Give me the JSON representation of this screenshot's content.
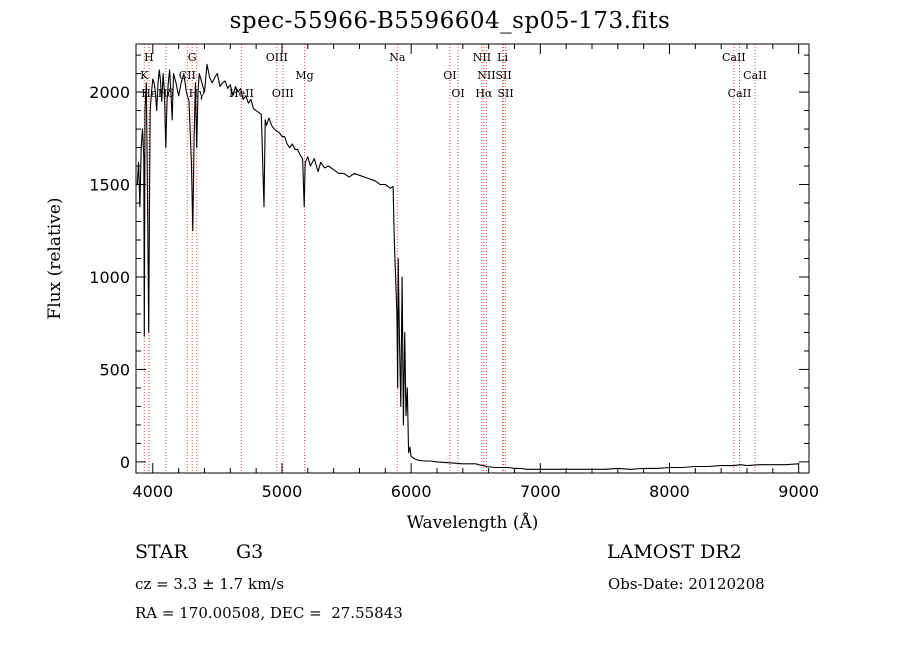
{
  "chart_data": {
    "type": "line",
    "title": "spec-55966-B5596604_sp05-173.fits",
    "xlabel": "Wavelength (Å)",
    "ylabel": "Flux (relative)",
    "xlim": [
      3870,
      9080
    ],
    "ylim": [
      -60,
      2260
    ],
    "xticks": [
      4000,
      5000,
      6000,
      7000,
      8000,
      9000
    ],
    "yticks": [
      0,
      500,
      1000,
      1500,
      2000
    ],
    "grid": false,
    "series": [
      {
        "x": [
          3880,
          3890,
          3900,
          3910,
          3920,
          3930,
          3934,
          3940,
          3950,
          3960,
          3968,
          3975,
          3980,
          3990,
          4000,
          4010,
          4020,
          4030,
          4040,
          4050,
          4060,
          4070,
          4080,
          4090,
          4101,
          4110,
          4120,
          4130,
          4140,
          4150,
          4160,
          4180,
          4200,
          4220,
          4240,
          4260,
          4280,
          4300,
          4310,
          4320,
          4330,
          4340,
          4350,
          4360,
          4380,
          4400,
          4420,
          4440,
          4460,
          4480,
          4500,
          4520,
          4540,
          4560,
          4580,
          4600,
          4620,
          4640,
          4660,
          4680,
          4700,
          4720,
          4740,
          4760,
          4780,
          4800,
          4820,
          4840,
          4861,
          4870,
          4880,
          4900,
          4920,
          4940,
          4960,
          4980,
          5000,
          5020,
          5040,
          5060,
          5080,
          5100,
          5120,
          5140,
          5160,
          5172,
          5180,
          5200,
          5220,
          5250,
          5280,
          5300,
          5330,
          5360,
          5400,
          5440,
          5480,
          5520,
          5560,
          5600,
          5640,
          5680,
          5720,
          5760,
          5800,
          5840,
          5860,
          5870,
          5880,
          5890,
          5896,
          5900,
          5910,
          5920,
          5930,
          5940,
          5950,
          5960,
          5970,
          5980,
          5990,
          6000,
          6020,
          6050,
          6100,
          6150,
          6200,
          6300,
          6400,
          6500,
          6550,
          6563,
          6580,
          6650,
          6700,
          6750,
          6800,
          6850,
          6900,
          7000,
          7100,
          7200,
          7300,
          7400,
          7500,
          7600,
          7700,
          7800,
          7900,
          8000,
          8100,
          8200,
          8300,
          8400,
          8500,
          8550,
          8600,
          8700,
          8800,
          8900,
          9000
        ],
        "y": [
          1500,
          1620,
          1380,
          1700,
          1800,
          1650,
          680,
          1900,
          2050,
          1400,
          700,
          1500,
          1900,
          2000,
          2070,
          2050,
          2000,
          1900,
          2050,
          2120,
          2060,
          1950,
          2100,
          2000,
          1700,
          1950,
          2050,
          2120,
          2000,
          1850,
          2100,
          2050,
          1980,
          2050,
          2100,
          2000,
          1950,
          1600,
          1250,
          1750,
          2050,
          1700,
          2000,
          2100,
          2050,
          2000,
          2150,
          2080,
          2050,
          2080,
          2100,
          2030,
          2050,
          2060,
          2020,
          2040,
          1980,
          2030,
          2000,
          2020,
          1960,
          1980,
          1940,
          1960,
          1910,
          1900,
          1890,
          1880,
          1380,
          1850,
          1820,
          1860,
          1820,
          1800,
          1790,
          1780,
          1760,
          1760,
          1720,
          1700,
          1720,
          1690,
          1690,
          1660,
          1640,
          1380,
          1620,
          1650,
          1600,
          1640,
          1570,
          1620,
          1590,
          1600,
          1580,
          1560,
          1560,
          1540,
          1560,
          1550,
          1540,
          1530,
          1520,
          1500,
          1500,
          1480,
          1490,
          1200,
          1000,
          800,
          400,
          1100,
          650,
          300,
          1000,
          200,
          700,
          250,
          400,
          50,
          80,
          30,
          20,
          10,
          5,
          5,
          0,
          -5,
          -10,
          -10,
          -20,
          -20,
          -25,
          -30,
          -30,
          -30,
          -35,
          -35,
          -40,
          -40,
          -40,
          -40,
          -40,
          -40,
          -40,
          -35,
          -40,
          -35,
          -35,
          -30,
          -30,
          -25,
          -25,
          -20,
          -20,
          -15,
          -20,
          -15,
          -15,
          -15,
          -10
        ]
      }
    ],
    "lines": [
      {
        "label": "H",
        "x": 3970,
        "row": 0
      },
      {
        "label": "K",
        "x": 3934,
        "row": 1
      },
      {
        "label": "Hε",
        "x": 3970,
        "row": 2
      },
      {
        "label": "Hδ",
        "x": 4101,
        "row": 2
      },
      {
        "label": "HeII",
        "x": 4686,
        "row": 2
      },
      {
        "label": "G",
        "x": 4305,
        "row": 0
      },
      {
        "label": "CII",
        "x": 4267,
        "row": 1
      },
      {
        "label": "Hγ",
        "x": 4340,
        "row": 2
      },
      {
        "label": "OIII",
        "x": 4960,
        "row": 0
      },
      {
        "label": "OIII",
        "x": 5007,
        "row": 2
      },
      {
        "label": "Mg",
        "x": 5175,
        "row": 1
      },
      {
        "label": "Na",
        "x": 5893,
        "row": 0
      },
      {
        "label": "OI",
        "x": 6300,
        "row": 1
      },
      {
        "label": "OI",
        "x": 6363,
        "row": 2
      },
      {
        "label": "NII",
        "x": 6548,
        "row": 0
      },
      {
        "label": "NII",
        "x": 6583,
        "row": 1
      },
      {
        "label": "Hα",
        "x": 6563,
        "row": 2
      },
      {
        "label": "Li",
        "x": 6708,
        "row": 0
      },
      {
        "label": "SII",
        "x": 6716,
        "row": 1
      },
      {
        "label": "SII",
        "x": 6731,
        "row": 2
      },
      {
        "label": "CaII",
        "x": 8498,
        "row": 0
      },
      {
        "label": "CaII",
        "x": 8542,
        "row": 2
      },
      {
        "label": "CaII",
        "x": 8662,
        "row": 1
      }
    ]
  },
  "info": {
    "object_class": "STAR",
    "subclass": "G3",
    "survey": "LAMOST DR2",
    "cz": "cz = 3.3 ± 1.7 km/s",
    "obs_date": "Obs-Date: 20120208",
    "coords": "RA = 170.00508, DEC =  27.55843"
  }
}
